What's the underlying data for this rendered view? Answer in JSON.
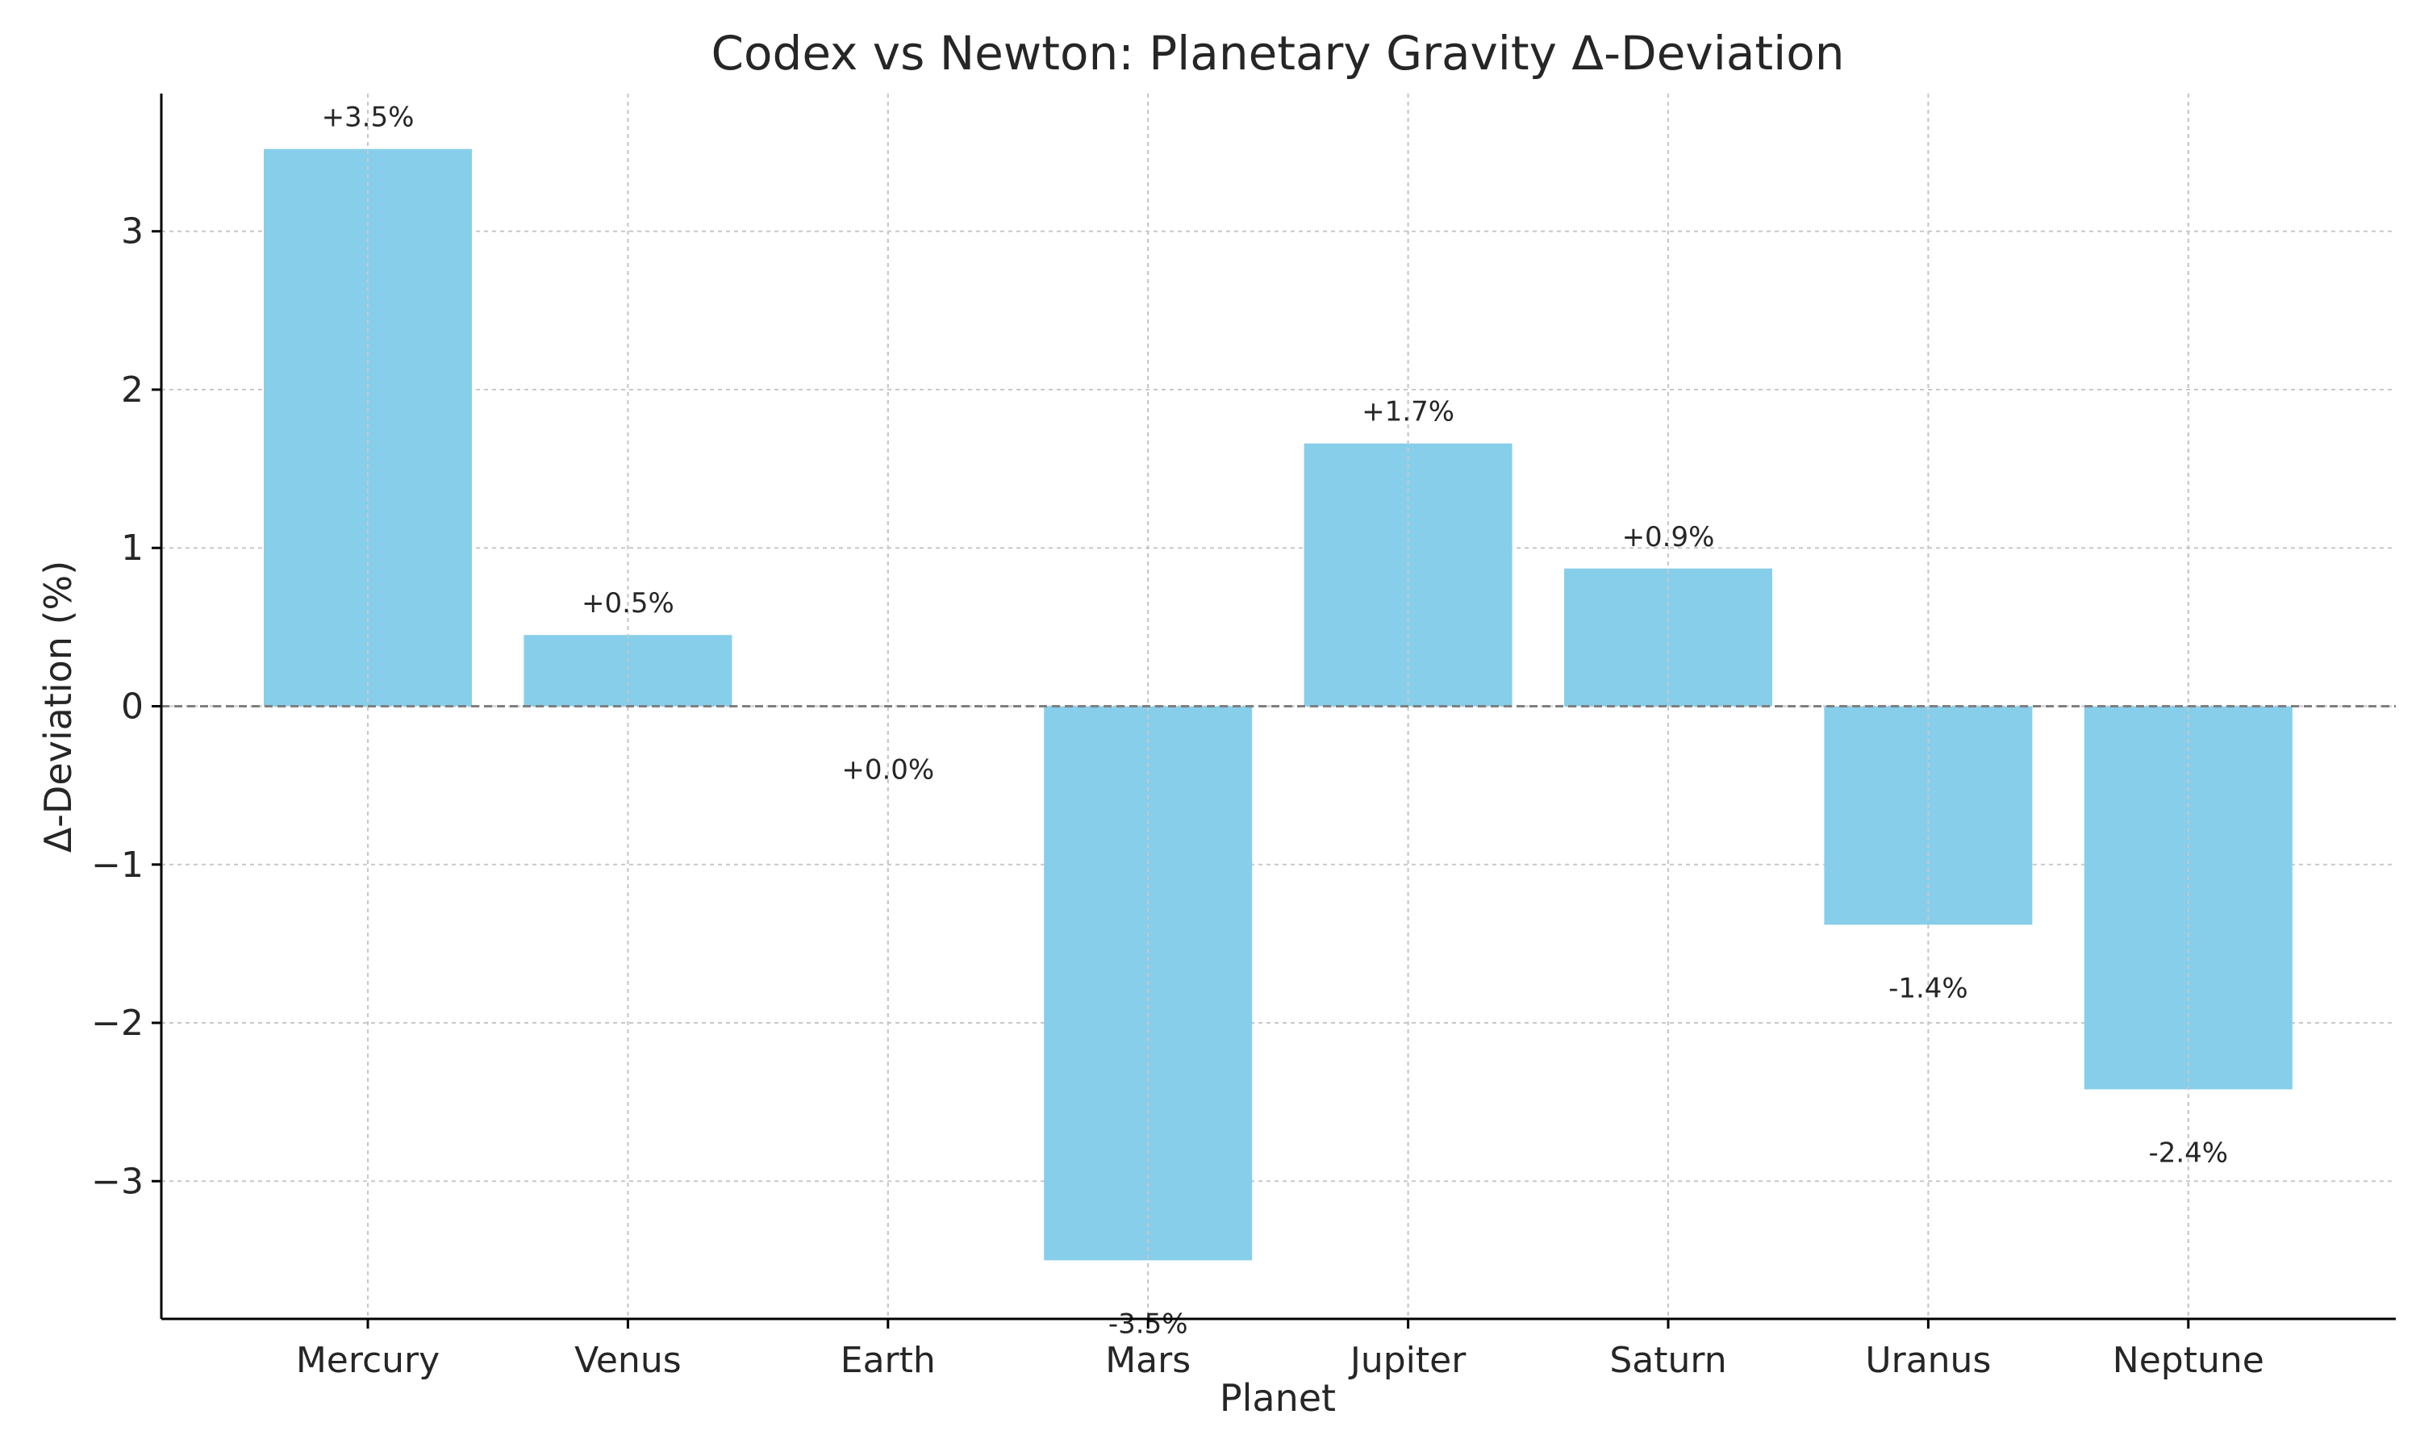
{
  "chart_data": {
    "type": "bar",
    "title": "Codex vs Newton: Planetary Gravity Δ-Deviation",
    "xlabel": "Planet",
    "ylabel": "Δ-Deviation (%)",
    "categories": [
      "Mercury",
      "Venus",
      "Earth",
      "Mars",
      "Jupiter",
      "Saturn",
      "Uranus",
      "Neptune"
    ],
    "values": [
      3.52,
      0.45,
      0.0,
      -3.5,
      1.66,
      0.87,
      -1.38,
      -2.42
    ],
    "data_labels": [
      "+3.5%",
      "+0.5%",
      "+0.0%",
      "-3.5%",
      "+1.7%",
      "+0.9%",
      "-1.4%",
      "-2.4%"
    ],
    "ylim": [
      -3.87,
      3.87
    ],
    "yticks": [
      -3,
      -2,
      -1,
      0,
      1,
      2,
      3
    ],
    "ytick_labels": [
      "−3",
      "−2",
      "−1",
      "0",
      "1",
      "2",
      "3"
    ],
    "grid": true,
    "zero_line": true,
    "colors": {
      "bar": "#87CEEB",
      "zero_line": "#7f7f7f",
      "grid": "#c8c8c8"
    }
  }
}
